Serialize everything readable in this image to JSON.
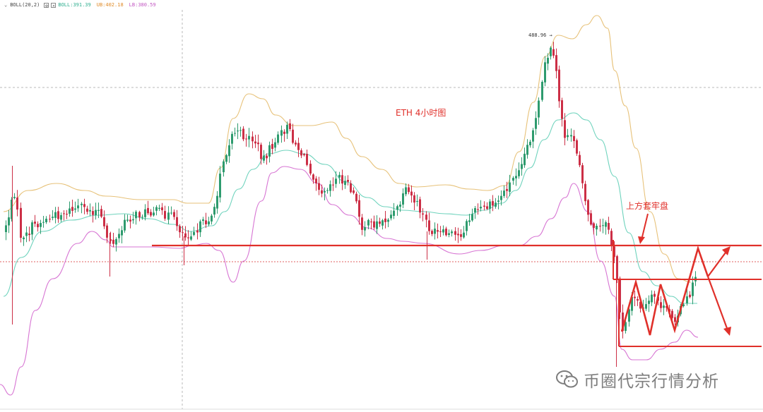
{
  "legend": {
    "indicator": "BOLL(20,2)",
    "mid": "BOLL:391.39",
    "upper": "UB:402.18",
    "lower": "LB:380.59"
  },
  "annotations": {
    "title": "ETH  4小时图",
    "note": "上方套牢盘",
    "peak_label": "488.96"
  },
  "watermark": {
    "text": "币圈代宗行情分析",
    "icon": "wechat-icon"
  },
  "colors": {
    "up": "#2e9b6e",
    "down": "#cc2f46",
    "upper_band": "#e7c27a",
    "mid_band": "#6fd3bd",
    "lower_band": "#d775d3",
    "annotation": "#e0302a",
    "legend_mid": "#2fae8f",
    "legend_upper": "#e08c2a",
    "legend_lower": "#c257c2"
  },
  "chart_data": {
    "type": "candlestick",
    "peak_high": 488.96,
    "indicator": "BOLL(20,2)",
    "bands": [
      "mid",
      "upper",
      "lower"
    ]
  }
}
